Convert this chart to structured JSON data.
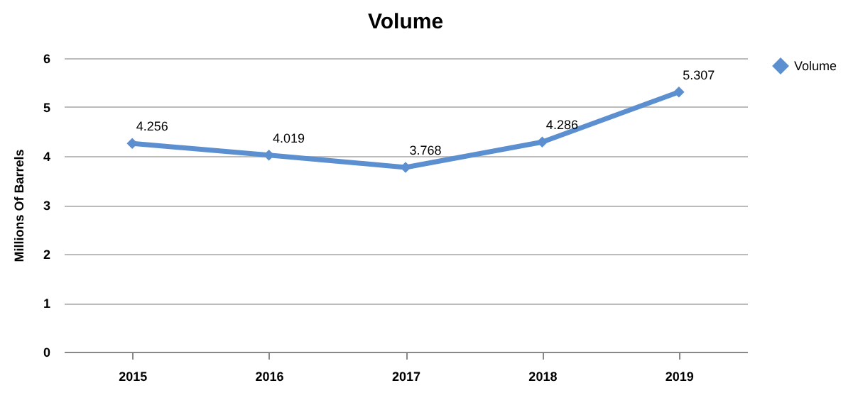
{
  "chart_data": {
    "type": "line",
    "title": "Volume",
    "ylabel": "Millions Of Barrels",
    "categories": [
      "2015",
      "2016",
      "2017",
      "2018",
      "2019"
    ],
    "series": [
      {
        "name": "Volume",
        "color": "#5b8fd0",
        "values": [
          4.256,
          4.019,
          3.768,
          4.286,
          5.307
        ]
      }
    ],
    "ylim": [
      0,
      6
    ],
    "yticks": [
      0,
      1,
      2,
      3,
      4,
      5,
      6
    ],
    "grid": "y",
    "legend": "right",
    "marker": "diamond",
    "line_style": "solid",
    "data_labels": true
  }
}
